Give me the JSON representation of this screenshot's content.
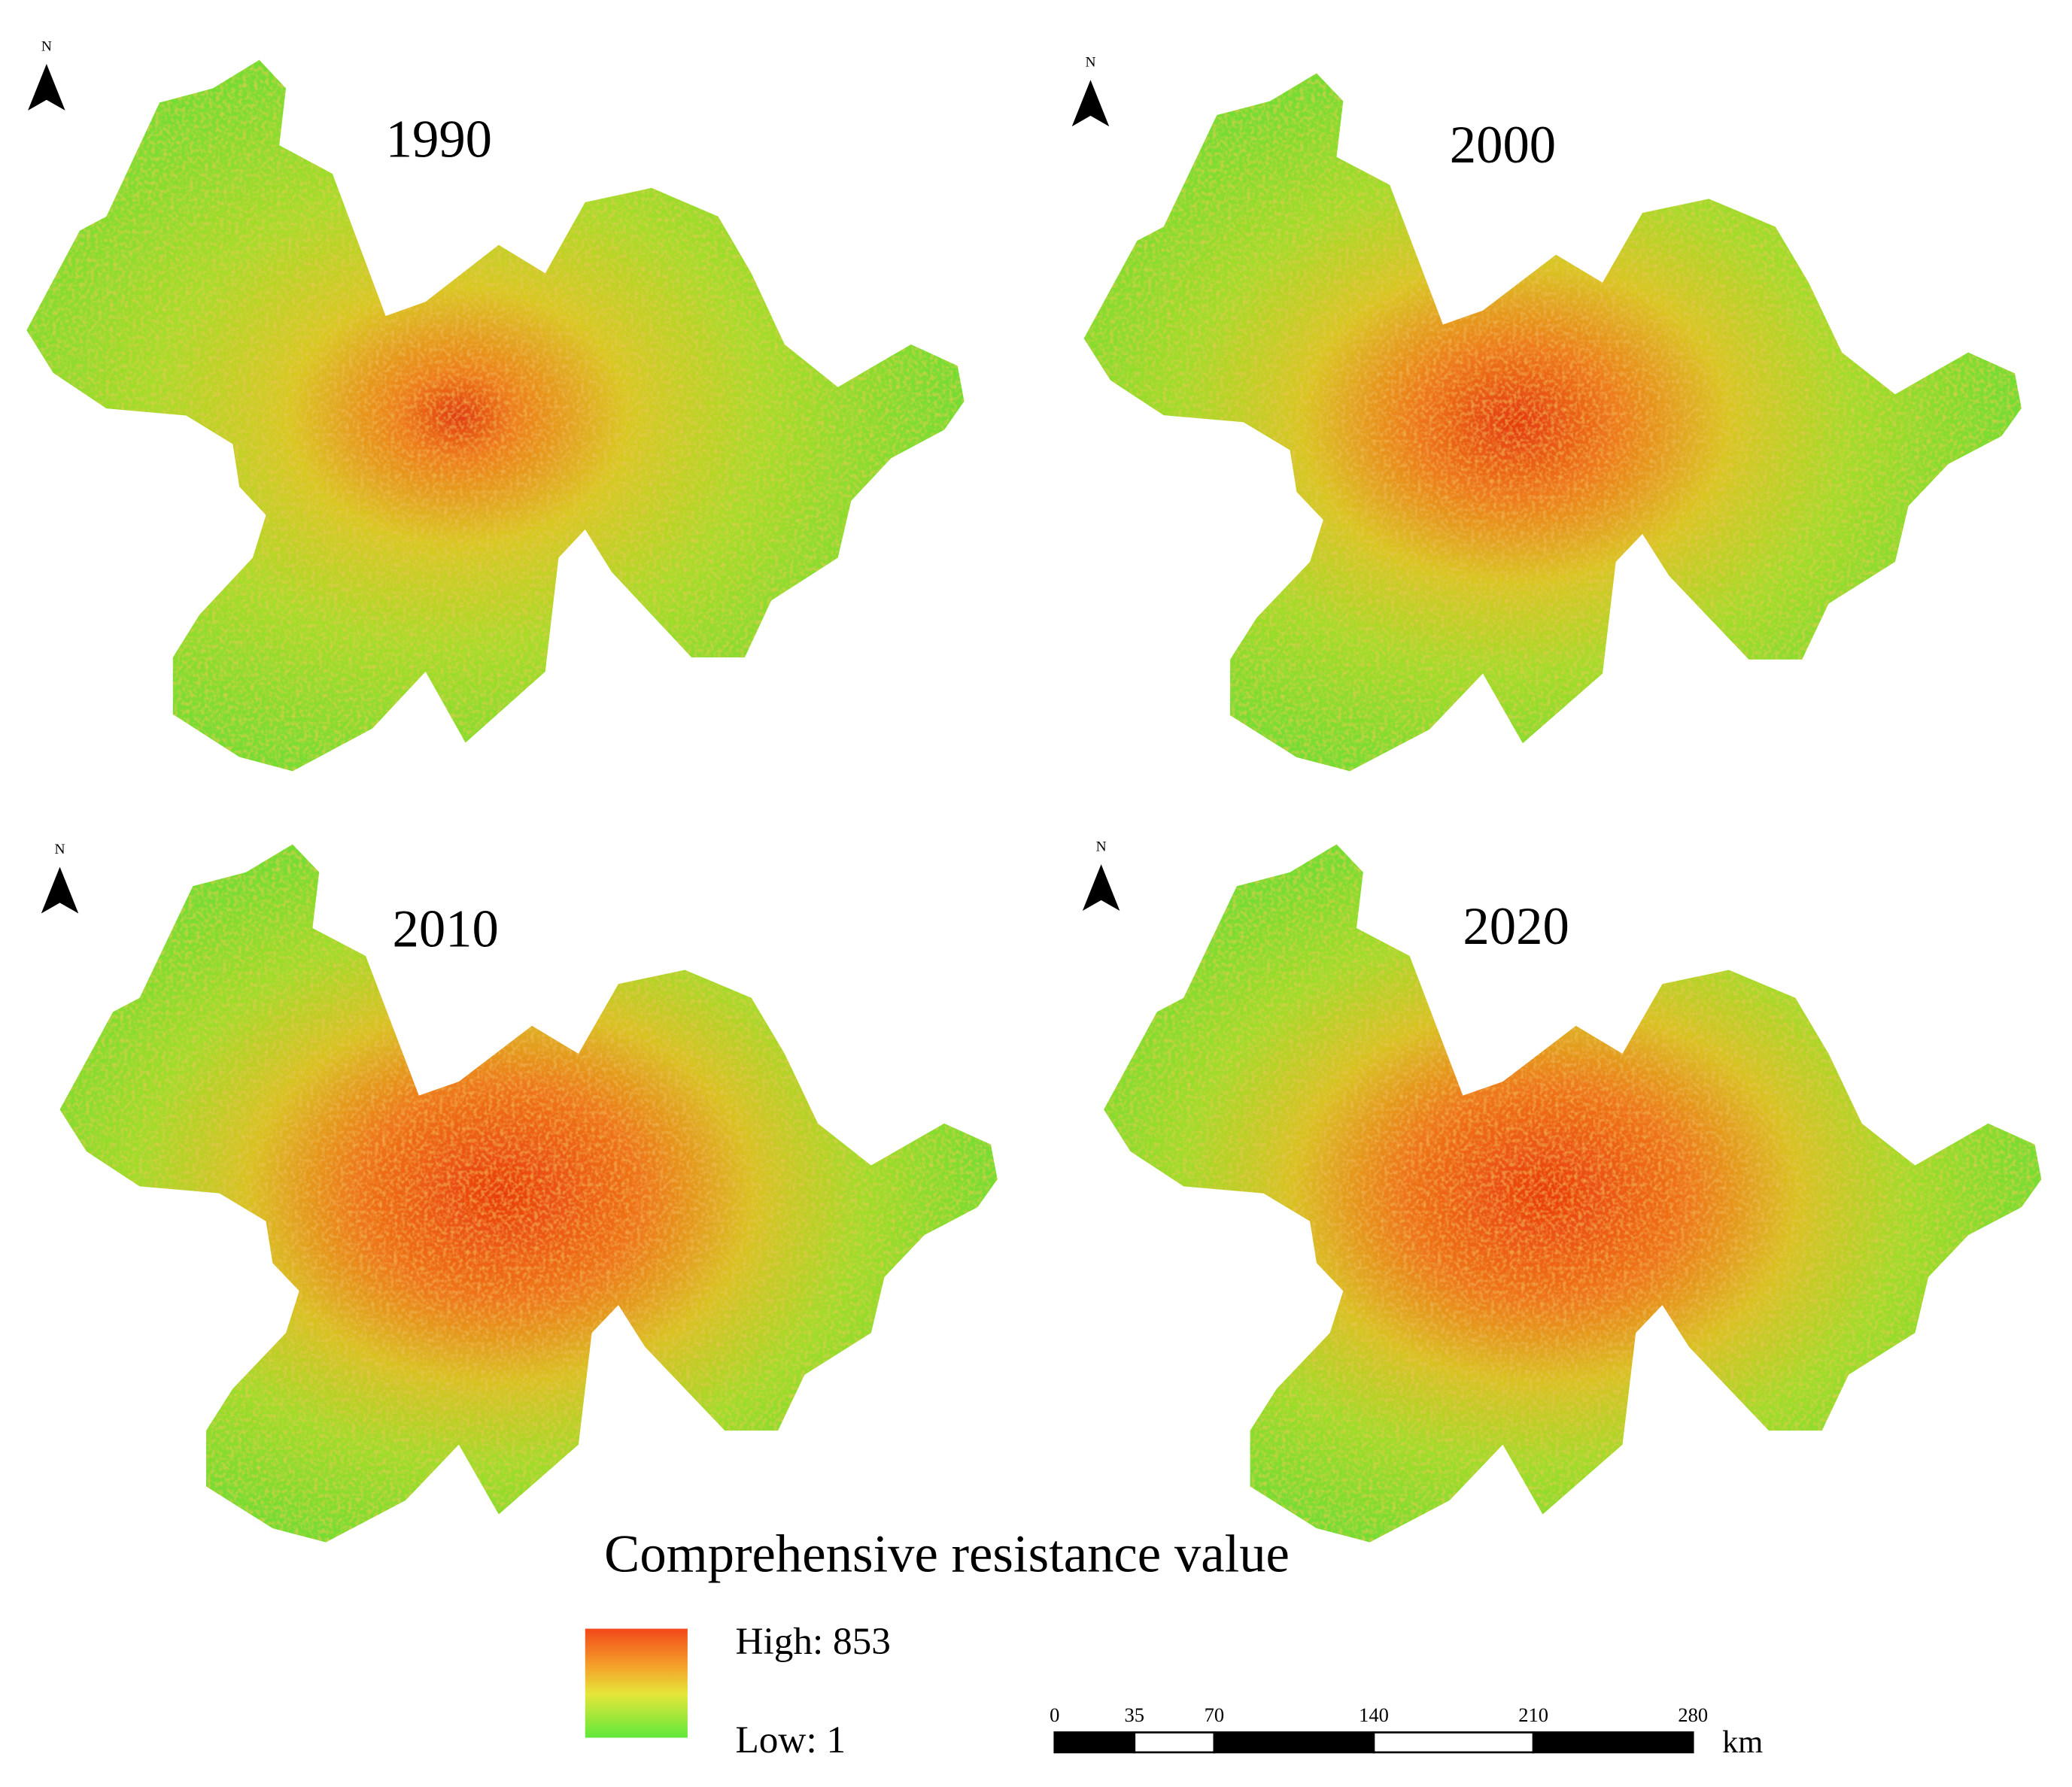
{
  "maps": [
    {
      "title": "1990",
      "north": "N"
    },
    {
      "title": "2000",
      "north": "N"
    },
    {
      "title": "2010",
      "north": "N"
    },
    {
      "title": "2020",
      "north": "N"
    }
  ],
  "legend": {
    "title": "Comprehensive resistance value",
    "high": "High: 853",
    "low": "Low: 1"
  },
  "scale_bar": {
    "ticks": [
      0,
      35,
      70,
      140,
      210,
      280
    ],
    "unit": "km"
  }
}
